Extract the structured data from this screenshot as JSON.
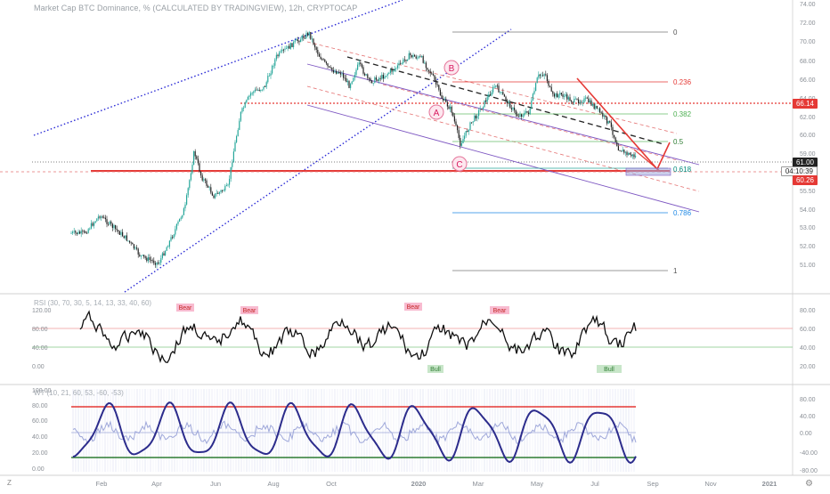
{
  "chart": {
    "title": "Market Cap BTC Dominance, % (CALCULATED BY TRADINGVIEW), 12h, CRYPTOCAP",
    "time_labels": [
      "Feb",
      "Apr",
      "Jun",
      "Aug",
      "Oct",
      "2020",
      "Mar",
      "May",
      "Jul",
      "Sep",
      "Nov",
      "2021"
    ],
    "price_axis_labels": [
      "74.00",
      "72.00",
      "70.00",
      "68.00",
      "66.00",
      "64.00",
      "62.00",
      "60.00",
      "59.00",
      "57.00",
      "55.50",
      "54.00",
      "53.00",
      "52.00",
      "51.00"
    ],
    "fib_levels": [
      {
        "label": "0",
        "color": "#555555"
      },
      {
        "label": "0.236",
        "color": "#e53935"
      },
      {
        "label": "0.382",
        "color": "#4caf50"
      },
      {
        "label": "0.5",
        "color": "#2e7d32"
      },
      {
        "label": "0.618",
        "color": "#00897b"
      },
      {
        "label": "0.786",
        "color": "#1e88e5"
      },
      {
        "label": "1",
        "color": "#555555"
      }
    ],
    "wave_labels": {
      "a": "A",
      "b": "B",
      "c": "C"
    },
    "price_tags": {
      "current": "61.00",
      "countdown": "04:10:39",
      "level_red": "66.14",
      "level_low": "60.26"
    }
  },
  "rsi": {
    "title": "RSI (30, 70, 30, 5, 14, 13, 33, 40, 60)",
    "left_axis": [
      "120.00",
      "80.00",
      "40.00",
      "0.00"
    ],
    "right_axis": [
      "80.00",
      "60.00",
      "40.00",
      "20.00"
    ],
    "signals": {
      "bear": "Bear",
      "bull": "Bull"
    }
  },
  "wt": {
    "title": "WT (10, 21, 60, 53, -60, -53)",
    "left_axis": [
      "100.00",
      "80.00",
      "60.00",
      "40.00",
      "20.00",
      "0.00"
    ],
    "right_axis": [
      "80.00",
      "40.00",
      "0.00",
      "-40.00",
      "-80.00"
    ]
  },
  "colors": {
    "candle_up": "#26a69a",
    "candle_down": "#222222",
    "channel": "#2b2bd6",
    "red": "#e53935",
    "wt_line": "#2c2c8c"
  }
}
